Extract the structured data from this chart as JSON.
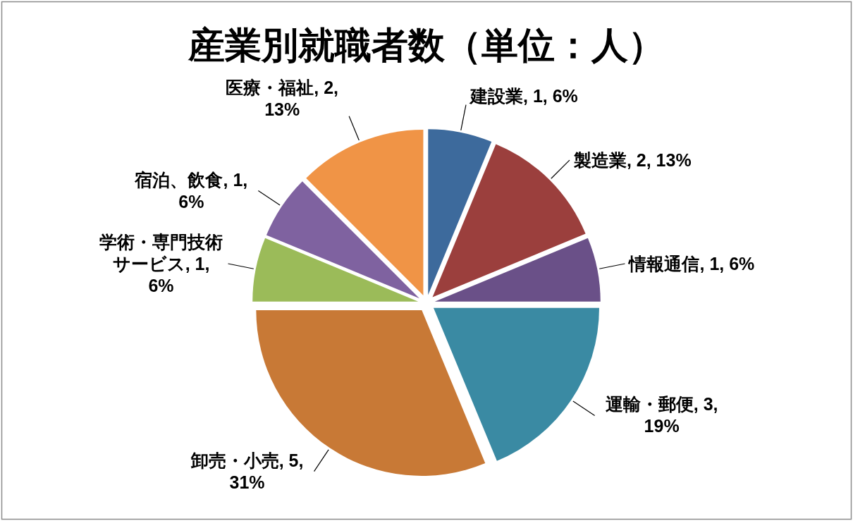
{
  "chart_data": {
    "type": "pie",
    "title": "産業別就職者数（単位：人）",
    "categories": [
      "建設業",
      "製造業",
      "情報通信",
      "運輸・郵便",
      "卸売・小売",
      "学術・専門技術サービス",
      "宿泊、飲食",
      "医療・福祉"
    ],
    "values": [
      1,
      2,
      1,
      3,
      5,
      1,
      1,
      2
    ],
    "colors": [
      "#3d6a9c",
      "#9b3f3d",
      "#6a5088",
      "#3a8aa3",
      "#c87936",
      "#9bbb59",
      "#7f62a0",
      "#f09446"
    ],
    "value_labels": [
      "1, 6%",
      "2, 13%",
      "1, 6%",
      "3, 19%",
      "5, 31%",
      "1, 6%",
      "1, 6%",
      "2, 13%"
    ]
  }
}
